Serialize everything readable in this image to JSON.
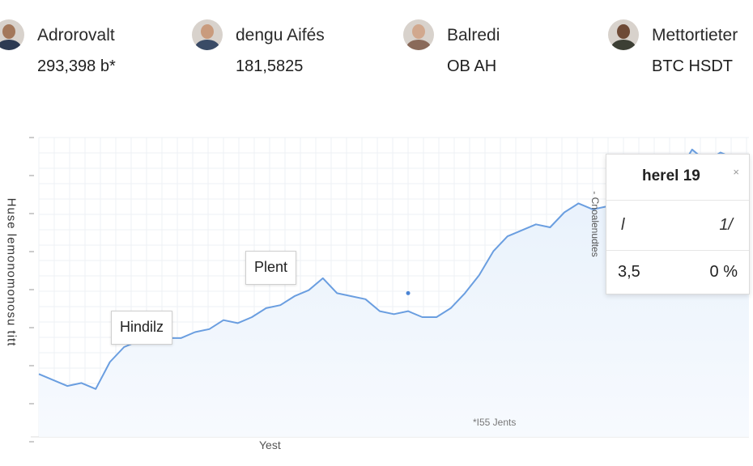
{
  "header": {
    "profiles": [
      {
        "name": "Adrorovalt",
        "value": "293,398 b*"
      },
      {
        "name": "dengu Aifés",
        "value": "181,5825"
      },
      {
        "name": "Balredi",
        "value": "OB AH"
      },
      {
        "name": "Mettortieter",
        "value": "BTC HSDT"
      }
    ]
  },
  "colors": {
    "line": "#6a9ee0",
    "fill": "#e6f0fb",
    "grid": "#edf0f4",
    "accent": "#4a84d4"
  },
  "chart_data": {
    "type": "area",
    "xlabel": "Yest",
    "ylabel": "Huse lemonomonosu titt",
    "vertical_note": "- Cnoalenudtes",
    "watermark": "*I55 Jents",
    "x": [
      0,
      2,
      4,
      6,
      8,
      10,
      12,
      14,
      16,
      18,
      20,
      22,
      24,
      26,
      28,
      30,
      32,
      34,
      36,
      38,
      40,
      42,
      44,
      46,
      48,
      50,
      52,
      54,
      56,
      58,
      60,
      62,
      64,
      66,
      68,
      70,
      72,
      74,
      76,
      78,
      80,
      82,
      84,
      86,
      88,
      90,
      92,
      94,
      96,
      98,
      100
    ],
    "y": [
      2.1,
      1.9,
      1.7,
      1.8,
      1.6,
      2.5,
      3.0,
      3.2,
      3.4,
      3.3,
      3.3,
      3.5,
      3.6,
      3.9,
      3.8,
      4.0,
      4.3,
      4.4,
      4.7,
      4.9,
      5.3,
      4.8,
      4.7,
      4.6,
      4.2,
      4.1,
      4.2,
      4.0,
      4.0,
      4.3,
      4.8,
      5.4,
      6.2,
      6.7,
      6.9,
      7.1,
      7.0,
      7.5,
      7.8,
      7.6,
      7.7,
      8.0,
      8.5,
      8.9,
      8.7,
      8.8,
      9.6,
      9.2,
      9.5,
      9.3,
      9.4
    ],
    "ylim": [
      0,
      10
    ],
    "xlim": [
      0,
      100
    ],
    "grid": true,
    "annotations": [
      {
        "label": "Hindilz",
        "x": 16,
        "y": 3.3
      },
      {
        "label": "Plent",
        "x": 52,
        "y": 4.8
      }
    ],
    "tooltip": {
      "title": "herel 19",
      "close": "×",
      "col1": "l",
      "col2": "1/",
      "val1": "3,5",
      "val2": "0 %"
    }
  }
}
